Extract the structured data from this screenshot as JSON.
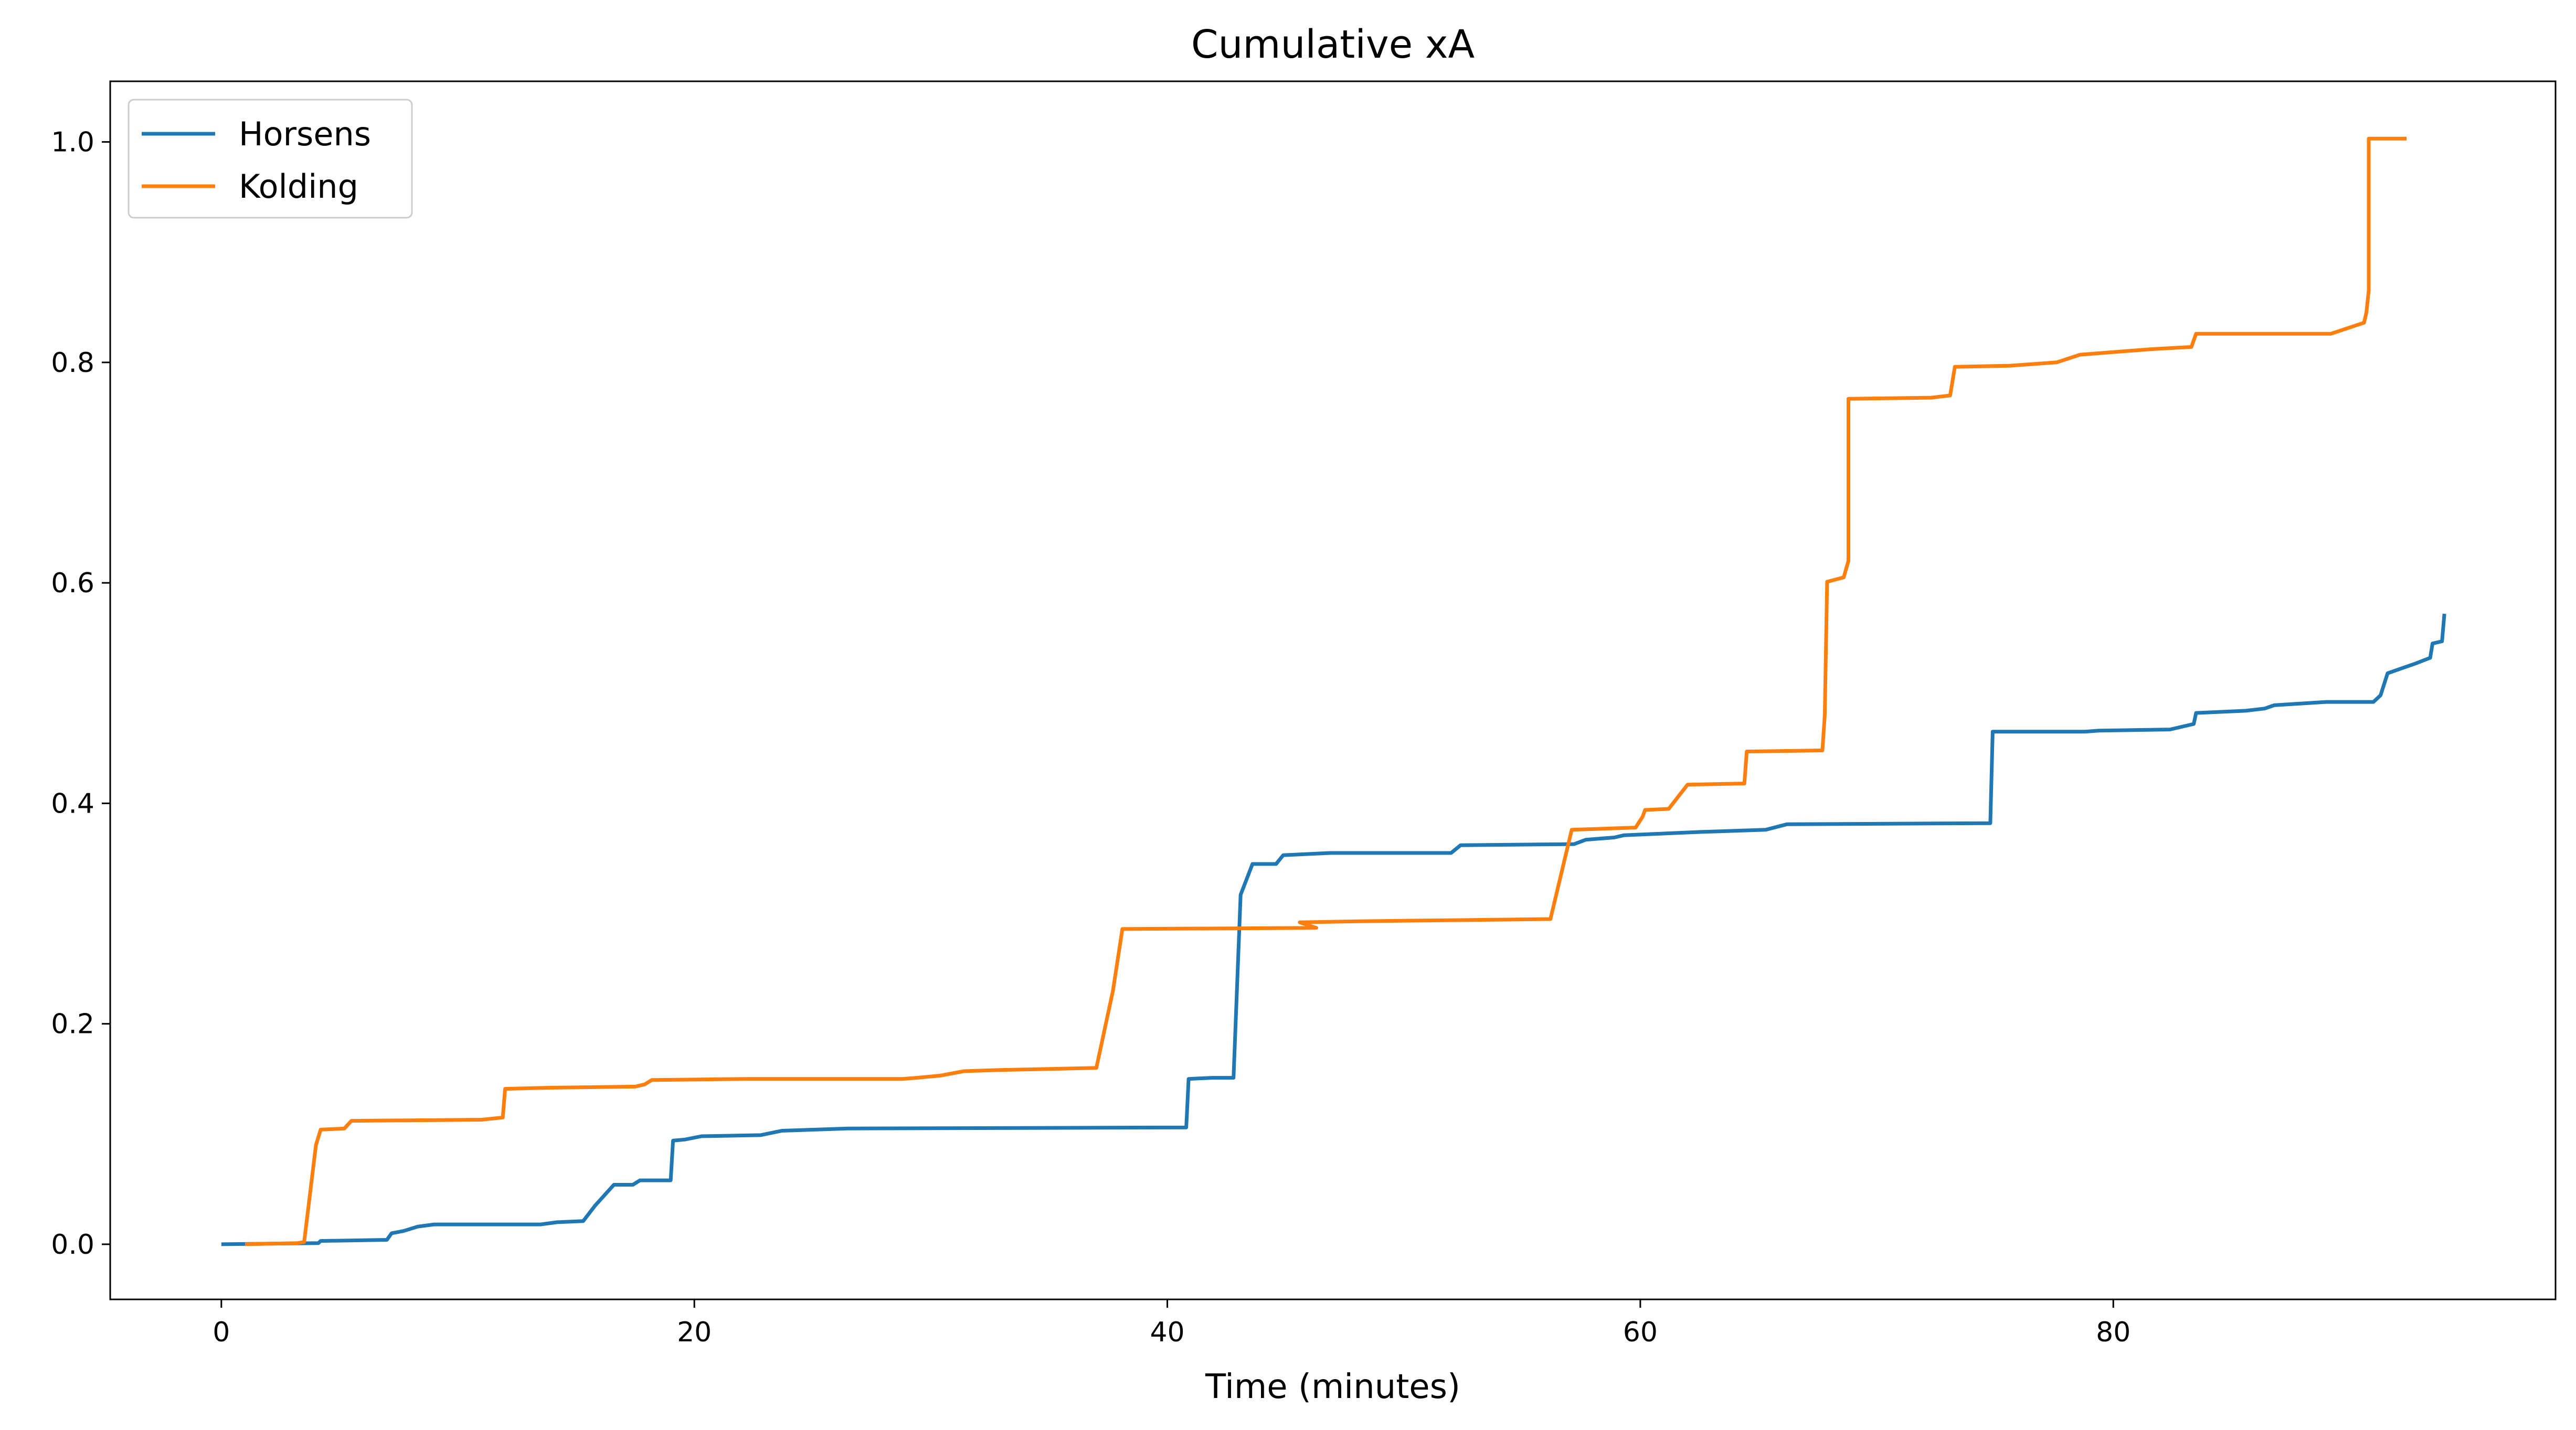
{
  "chart_data": {
    "type": "line",
    "title": "Cumulative xA",
    "xlabel": "Time (minutes)",
    "ylabel": "",
    "xlim": [
      -4.7,
      98.7
    ],
    "ylim": [
      -0.05,
      1.055
    ],
    "xticks": [
      0,
      20,
      40,
      60,
      80
    ],
    "yticks": [
      0.0,
      0.2,
      0.4,
      0.6,
      0.8,
      1.0
    ],
    "xtick_labels": [
      "0",
      "20",
      "40",
      "60",
      "80"
    ],
    "ytick_labels": [
      "0.0",
      "0.2",
      "0.4",
      "0.6",
      "0.8",
      "1.0"
    ],
    "grid": false,
    "legend_position": "upper-left",
    "series": [
      {
        "name": "Horsens",
        "color": "#1f77b4",
        "points": [
          [
            0,
            0.0
          ],
          [
            4.1,
            0.001
          ],
          [
            4.2,
            0.003
          ],
          [
            7.0,
            0.004
          ],
          [
            7.2,
            0.01
          ],
          [
            7.7,
            0.012
          ],
          [
            8.3,
            0.016
          ],
          [
            9.0,
            0.018
          ],
          [
            13.5,
            0.018
          ],
          [
            14.2,
            0.02
          ],
          [
            15.3,
            0.021
          ],
          [
            15.8,
            0.035
          ],
          [
            16.6,
            0.054
          ],
          [
            17.4,
            0.054
          ],
          [
            17.7,
            0.058
          ],
          [
            19.0,
            0.058
          ],
          [
            19.1,
            0.094
          ],
          [
            19.6,
            0.095
          ],
          [
            20.3,
            0.098
          ],
          [
            22.8,
            0.099
          ],
          [
            23.7,
            0.103
          ],
          [
            26.5,
            0.105
          ],
          [
            40.8,
            0.106
          ],
          [
            40.9,
            0.15
          ],
          [
            41.9,
            0.151
          ],
          [
            42.8,
            0.151
          ],
          [
            43.1,
            0.317
          ],
          [
            43.6,
            0.345
          ],
          [
            44.6,
            0.345
          ],
          [
            44.9,
            0.353
          ],
          [
            46.9,
            0.355
          ],
          [
            52.0,
            0.355
          ],
          [
            52.4,
            0.362
          ],
          [
            57.2,
            0.363
          ],
          [
            57.7,
            0.367
          ],
          [
            58.9,
            0.369
          ],
          [
            59.3,
            0.371
          ],
          [
            62.5,
            0.374
          ],
          [
            65.3,
            0.376
          ],
          [
            66.2,
            0.381
          ],
          [
            74.8,
            0.382
          ],
          [
            74.9,
            0.465
          ],
          [
            78.8,
            0.465
          ],
          [
            79.4,
            0.466
          ],
          [
            82.4,
            0.467
          ],
          [
            83.4,
            0.472
          ],
          [
            83.5,
            0.482
          ],
          [
            85.6,
            0.484
          ],
          [
            86.4,
            0.486
          ],
          [
            86.8,
            0.489
          ],
          [
            89.0,
            0.492
          ],
          [
            91.0,
            0.492
          ],
          [
            91.3,
            0.498
          ],
          [
            91.6,
            0.518
          ],
          [
            92.8,
            0.527
          ],
          [
            93.4,
            0.532
          ],
          [
            93.5,
            0.545
          ],
          [
            93.9,
            0.547
          ],
          [
            94.0,
            0.572
          ]
        ]
      },
      {
        "name": "Kolding",
        "color": "#ff7f0e",
        "points": [
          [
            1.0,
            0.0
          ],
          [
            3.2,
            0.001
          ],
          [
            3.5,
            0.002
          ],
          [
            4.0,
            0.09
          ],
          [
            4.2,
            0.104
          ],
          [
            5.2,
            0.105
          ],
          [
            5.5,
            0.112
          ],
          [
            11.0,
            0.113
          ],
          [
            11.9,
            0.115
          ],
          [
            12.0,
            0.141
          ],
          [
            13.9,
            0.142
          ],
          [
            17.5,
            0.143
          ],
          [
            17.9,
            0.145
          ],
          [
            18.2,
            0.149
          ],
          [
            22.3,
            0.15
          ],
          [
            28.8,
            0.15
          ],
          [
            29.4,
            0.151
          ],
          [
            30.4,
            0.153
          ],
          [
            31.4,
            0.157
          ],
          [
            32.8,
            0.158
          ],
          [
            37.0,
            0.16
          ],
          [
            37.7,
            0.23
          ],
          [
            38.1,
            0.286
          ],
          [
            46.3,
            0.287
          ],
          [
            45.6,
            0.292
          ],
          [
            48.1,
            0.293
          ],
          [
            56.2,
            0.295
          ],
          [
            57.1,
            0.376
          ],
          [
            59.8,
            0.378
          ],
          [
            60.1,
            0.388
          ],
          [
            60.2,
            0.394
          ],
          [
            61.2,
            0.395
          ],
          [
            62.0,
            0.417
          ],
          [
            64.4,
            0.418
          ],
          [
            64.5,
            0.447
          ],
          [
            67.7,
            0.448
          ],
          [
            67.8,
            0.48
          ],
          [
            67.9,
            0.601
          ],
          [
            68.6,
            0.605
          ],
          [
            68.8,
            0.62
          ],
          [
            68.8,
            0.767
          ],
          [
            72.3,
            0.768
          ],
          [
            73.1,
            0.77
          ],
          [
            73.3,
            0.796
          ],
          [
            75.6,
            0.797
          ],
          [
            77.6,
            0.8
          ],
          [
            78.6,
            0.807
          ],
          [
            81.6,
            0.812
          ],
          [
            83.3,
            0.814
          ],
          [
            83.5,
            0.826
          ],
          [
            89.2,
            0.826
          ],
          [
            90.6,
            0.836
          ],
          [
            90.7,
            0.845
          ],
          [
            90.8,
            0.865
          ],
          [
            90.8,
            1.003
          ],
          [
            92.4,
            1.003
          ]
        ]
      }
    ]
  }
}
